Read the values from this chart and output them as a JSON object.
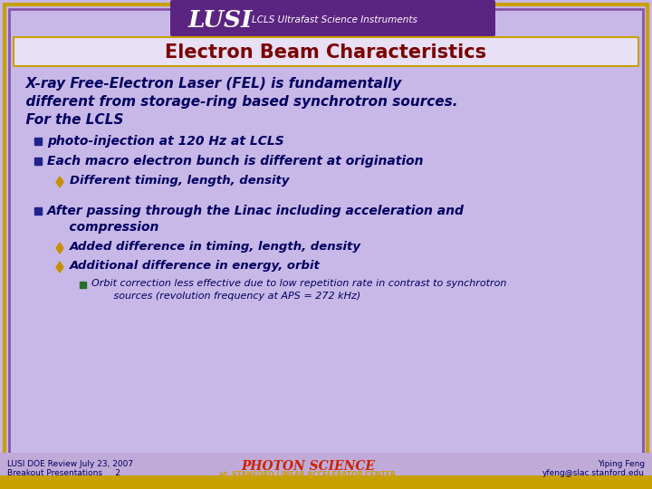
{
  "title": "Electron Beam Characteristics",
  "header_bg": "#5B2480",
  "slide_bg": "#C8B8E8",
  "outer_border_color": "#C8A000",
  "inner_border_color": "#8855AA",
  "title_color": "#7B0000",
  "title_bg": "#E8E0F5",
  "body_text_color": "#000060",
  "bullet1_color": "#22228B",
  "bullet2_color": "#C89000",
  "bullet3_color": "#2B6B2B",
  "footer_bg": "#C8B8E8",
  "footer_left1": "LUSI DOE Review July 23, 2007",
  "footer_left2": "Breakout Presentations     2",
  "footer_right1": "Yiping Feng",
  "footer_right2": "yfeng@slac.stanford.edu",
  "intro_text": "  X-ray Free-Electron Laser (FEL) is fundamentally\n  different from storage-ring based synchrotron sources.\n  For the LCLS",
  "bullets": [
    {
      "level": 1,
      "text": "photo-injection at 120 Hz at LCLS",
      "extra_before": 0
    },
    {
      "level": 1,
      "text": "Each macro electron bunch is different at origination",
      "extra_before": 0
    },
    {
      "level": 2,
      "text": "Different timing, length, density",
      "extra_before": 0
    },
    {
      "level": 1,
      "text": "After passing through the Linac including acceleration and\n     compression",
      "extra_before": 12
    },
    {
      "level": 2,
      "text": "Added difference in timing, length, density",
      "extra_before": 0
    },
    {
      "level": 2,
      "text": "Additional difference in energy, orbit",
      "extra_before": 0
    },
    {
      "level": 3,
      "text": "Orbit correction less effective due to low repetition rate in contrast to synchrotron\n       sources (revolution frequency at APS = 272 kHz)",
      "extra_before": 0
    }
  ]
}
